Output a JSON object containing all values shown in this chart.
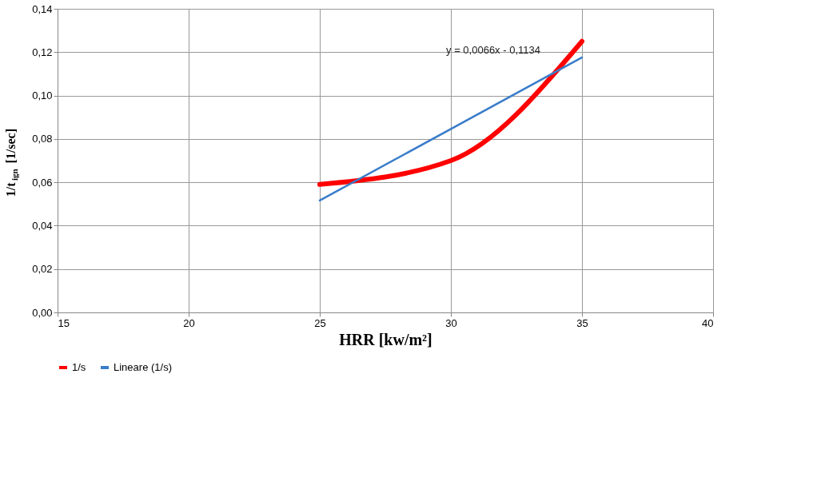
{
  "chart_data": {
    "type": "line",
    "xlabel": "HRR [kw/m²]",
    "ylabel": "1/t$_{ign}$ [1/sec]",
    "series": [
      {
        "name": "1/s",
        "color": "#ff0000",
        "x": [
          25,
          30,
          35
        ],
        "values": [
          0.059,
          0.07,
          0.125
        ]
      },
      {
        "name": "Lineare (1/s)",
        "color": "#3a7dc9",
        "x": [
          25,
          35
        ],
        "values": [
          0.0516,
          0.1176
        ]
      }
    ],
    "xlim": [
      15,
      40
    ],
    "xticks": [
      15,
      20,
      25,
      30,
      35,
      40
    ],
    "ylim": [
      0,
      0.14
    ],
    "yticks": [
      {
        "value": 0,
        "label": "0,00"
      },
      {
        "value": 0.02,
        "label": "0,02"
      },
      {
        "value": 0.04,
        "label": "0,04"
      },
      {
        "value": 0.06,
        "label": "0,06"
      },
      {
        "value": 0.08,
        "label": "0,08"
      },
      {
        "value": 0.1,
        "label": "0,10"
      },
      {
        "value": 0.12,
        "label": "0,12"
      },
      {
        "value": 0.14,
        "label": "0,14"
      }
    ],
    "annotations": [
      "y = 0,0066x - 0,1134"
    ],
    "grid": true,
    "legend": "bottom",
    "marker": "none",
    "line_style": "solid"
  }
}
